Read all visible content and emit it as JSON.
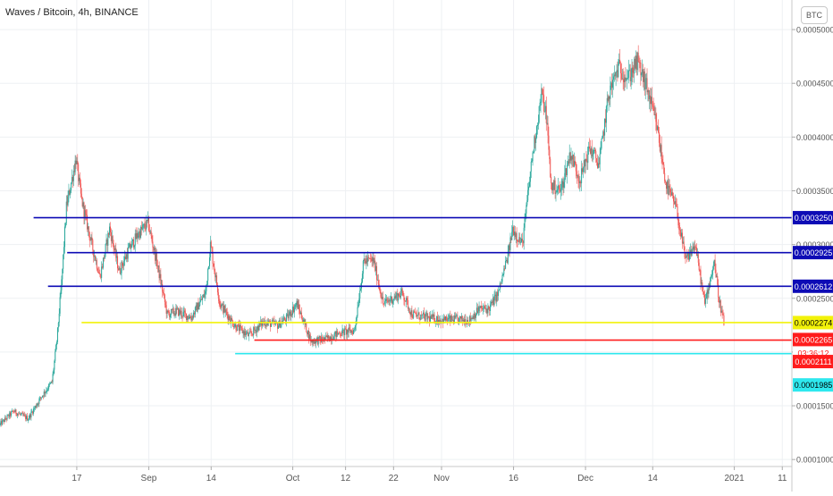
{
  "title": "Waves / Bitcoin, 4h, BINANCE",
  "currency_button": "BTC",
  "colors": {
    "up": "#26a69a",
    "down": "#ef5350",
    "grid": "#eef0f3",
    "axis": "#888888",
    "level_blue": "#0d0bb5",
    "level_yellow": "#f2f20a",
    "level_red": "#ff1c1c",
    "level_cyan": "#2ee8ee"
  },
  "chart_data": {
    "type": "candlestick",
    "y_axis": {
      "ticks": [
        "0.0005000",
        "0.0004500",
        "0.0004000",
        "0.0003500",
        "0.0003000",
        "0.0002500",
        "0.0002000",
        "0.0001500",
        "0.0001000"
      ],
      "tick_values": [
        0.0005,
        0.00045,
        0.0004,
        0.00035,
        0.0003,
        0.00025,
        0.0002,
        0.00015,
        0.0001
      ],
      "range": [
        9.35e-05,
        0.0005275
      ]
    },
    "x_axis": {
      "ticks": [
        "17",
        "Sep",
        "14",
        "Oct",
        "12",
        "22",
        "Nov",
        "16",
        "Dec",
        "14",
        "2021",
        "11"
      ],
      "tick_days": [
        16,
        31,
        44,
        61,
        72,
        82,
        92,
        107,
        122,
        136,
        153,
        163
      ],
      "range_days": [
        0,
        165
      ]
    },
    "horizontal_levels": [
      {
        "value": 0.000325,
        "color": "level_blue",
        "from_day": 7,
        "label": "0.0003250"
      },
      {
        "value": 0.0002925,
        "color": "level_blue",
        "from_day": 14,
        "label": "0.0002925"
      },
      {
        "value": 0.0002612,
        "color": "level_blue",
        "from_day": 10,
        "label": "0.0002612"
      },
      {
        "value": 0.0002274,
        "color": "level_yellow",
        "from_day": 17,
        "label": "0.0002274"
      },
      {
        "value": 0.0002111,
        "color": "level_red",
        "from_day": 53,
        "label": "0.0002111"
      },
      {
        "value": 0.0001985,
        "color": "level_cyan",
        "from_day": 49,
        "label": "0.0001985"
      }
    ],
    "price_labels": [
      {
        "text": "0.0002265",
        "color": "level_red"
      },
      {
        "text": "03:36:12",
        "color": "level_red"
      }
    ],
    "anchors": [
      [
        0,
        0.000132
      ],
      [
        3,
        0.000145
      ],
      [
        6,
        0.000138
      ],
      [
        9,
        0.00016
      ],
      [
        11,
        0.000172
      ],
      [
        12,
        0.00021
      ],
      [
        13,
        0.000265
      ],
      [
        14,
        0.000335
      ],
      [
        16,
        0.00038
      ],
      [
        17,
        0.000345
      ],
      [
        19,
        0.000305
      ],
      [
        21,
        0.00027
      ],
      [
        23,
        0.000315
      ],
      [
        25,
        0.000275
      ],
      [
        27,
        0.000295
      ],
      [
        29,
        0.00031
      ],
      [
        31,
        0.00032
      ],
      [
        33,
        0.00028
      ],
      [
        35,
        0.000235
      ],
      [
        37,
        0.000238
      ],
      [
        40,
        0.000232
      ],
      [
        43,
        0.000255
      ],
      [
        44,
        0.0003
      ],
      [
        46,
        0.000245
      ],
      [
        49,
        0.000225
      ],
      [
        52,
        0.000215
      ],
      [
        55,
        0.000228
      ],
      [
        58,
        0.000225
      ],
      [
        60,
        0.000232
      ],
      [
        62,
        0.000245
      ],
      [
        65,
        0.00021
      ],
      [
        68,
        0.000212
      ],
      [
        71,
        0.000218
      ],
      [
        74,
        0.00022
      ],
      [
        76,
        0.000285
      ],
      [
        78,
        0.000285
      ],
      [
        80,
        0.000245
      ],
      [
        82,
        0.00025
      ],
      [
        84,
        0.000255
      ],
      [
        86,
        0.000235
      ],
      [
        89,
        0.000232
      ],
      [
        92,
        0.00023
      ],
      [
        95,
        0.00023
      ],
      [
        98,
        0.00023
      ],
      [
        100,
        0.00024
      ],
      [
        102,
        0.00024
      ],
      [
        104,
        0.000255
      ],
      [
        106,
        0.00029
      ],
      [
        107,
        0.000315
      ],
      [
        109,
        0.0003
      ],
      [
        111,
        0.00038
      ],
      [
        113,
        0.00044
      ],
      [
        114,
        0.00042
      ],
      [
        115,
        0.000355
      ],
      [
        117,
        0.00035
      ],
      [
        119,
        0.000385
      ],
      [
        121,
        0.00036
      ],
      [
        123,
        0.00039
      ],
      [
        125,
        0.000375
      ],
      [
        127,
        0.00044
      ],
      [
        129,
        0.000465
      ],
      [
        131,
        0.000455
      ],
      [
        133,
        0.00047
      ],
      [
        135,
        0.000445
      ],
      [
        137,
        0.00041
      ],
      [
        139,
        0.000355
      ],
      [
        141,
        0.000335
      ],
      [
        143,
        0.000285
      ],
      [
        145,
        0.0003
      ],
      [
        147,
        0.000245
      ],
      [
        149,
        0.000285
      ],
      [
        150,
        0.000248
      ],
      [
        151,
        0.000227
      ]
    ]
  }
}
